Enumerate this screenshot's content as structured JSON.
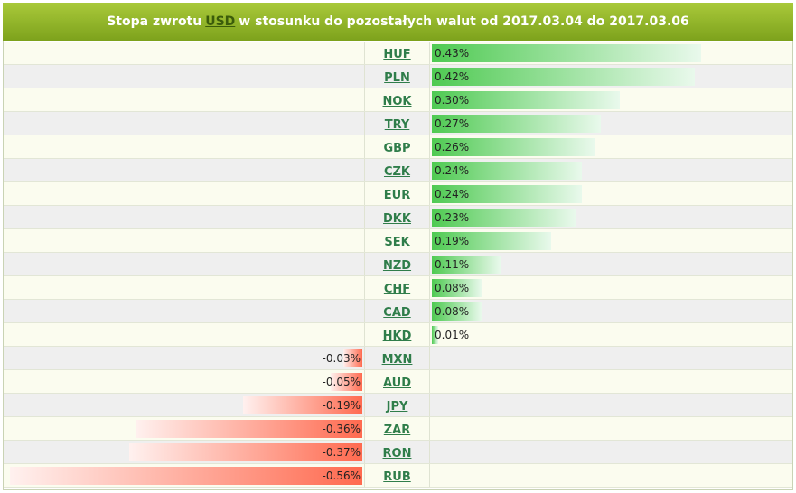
{
  "header": {
    "prefix": "Stopa zwrotu",
    "currency": "USD",
    "suffix": "w stosunku do pozostałych walut od 2017.03.04 do 2017.03.06"
  },
  "colors": {
    "positive": "#4fca52",
    "negative": "#ff6a4f",
    "link": "#2f7d4a"
  },
  "chart_data": {
    "type": "bar",
    "title": "Stopa zwrotu USD w stosunku do pozostałych walut od 2017.03.04 do 2017.03.06",
    "categories": [
      "HUF",
      "PLN",
      "NOK",
      "TRY",
      "GBP",
      "CZK",
      "EUR",
      "DKK",
      "SEK",
      "NZD",
      "CHF",
      "CAD",
      "HKD",
      "MXN",
      "AUD",
      "JPY",
      "ZAR",
      "RON",
      "RUB"
    ],
    "values": [
      0.43,
      0.42,
      0.3,
      0.27,
      0.26,
      0.24,
      0.24,
      0.23,
      0.19,
      0.11,
      0.08,
      0.08,
      0.01,
      -0.03,
      -0.05,
      -0.19,
      -0.36,
      -0.37,
      -0.56
    ],
    "labels": [
      "0.43%",
      "0.42%",
      "0.30%",
      "0.27%",
      "0.26%",
      "0.24%",
      "0.24%",
      "0.23%",
      "0.19%",
      "0.11%",
      "0.08%",
      "0.08%",
      "0.01%",
      "-0.03%",
      "-0.05%",
      "-0.19%",
      "-0.36%",
      "-0.37%",
      "-0.56%"
    ],
    "unit": "%",
    "orientation": "horizontal-diverging",
    "xlim": [
      -0.56,
      0.43
    ]
  }
}
